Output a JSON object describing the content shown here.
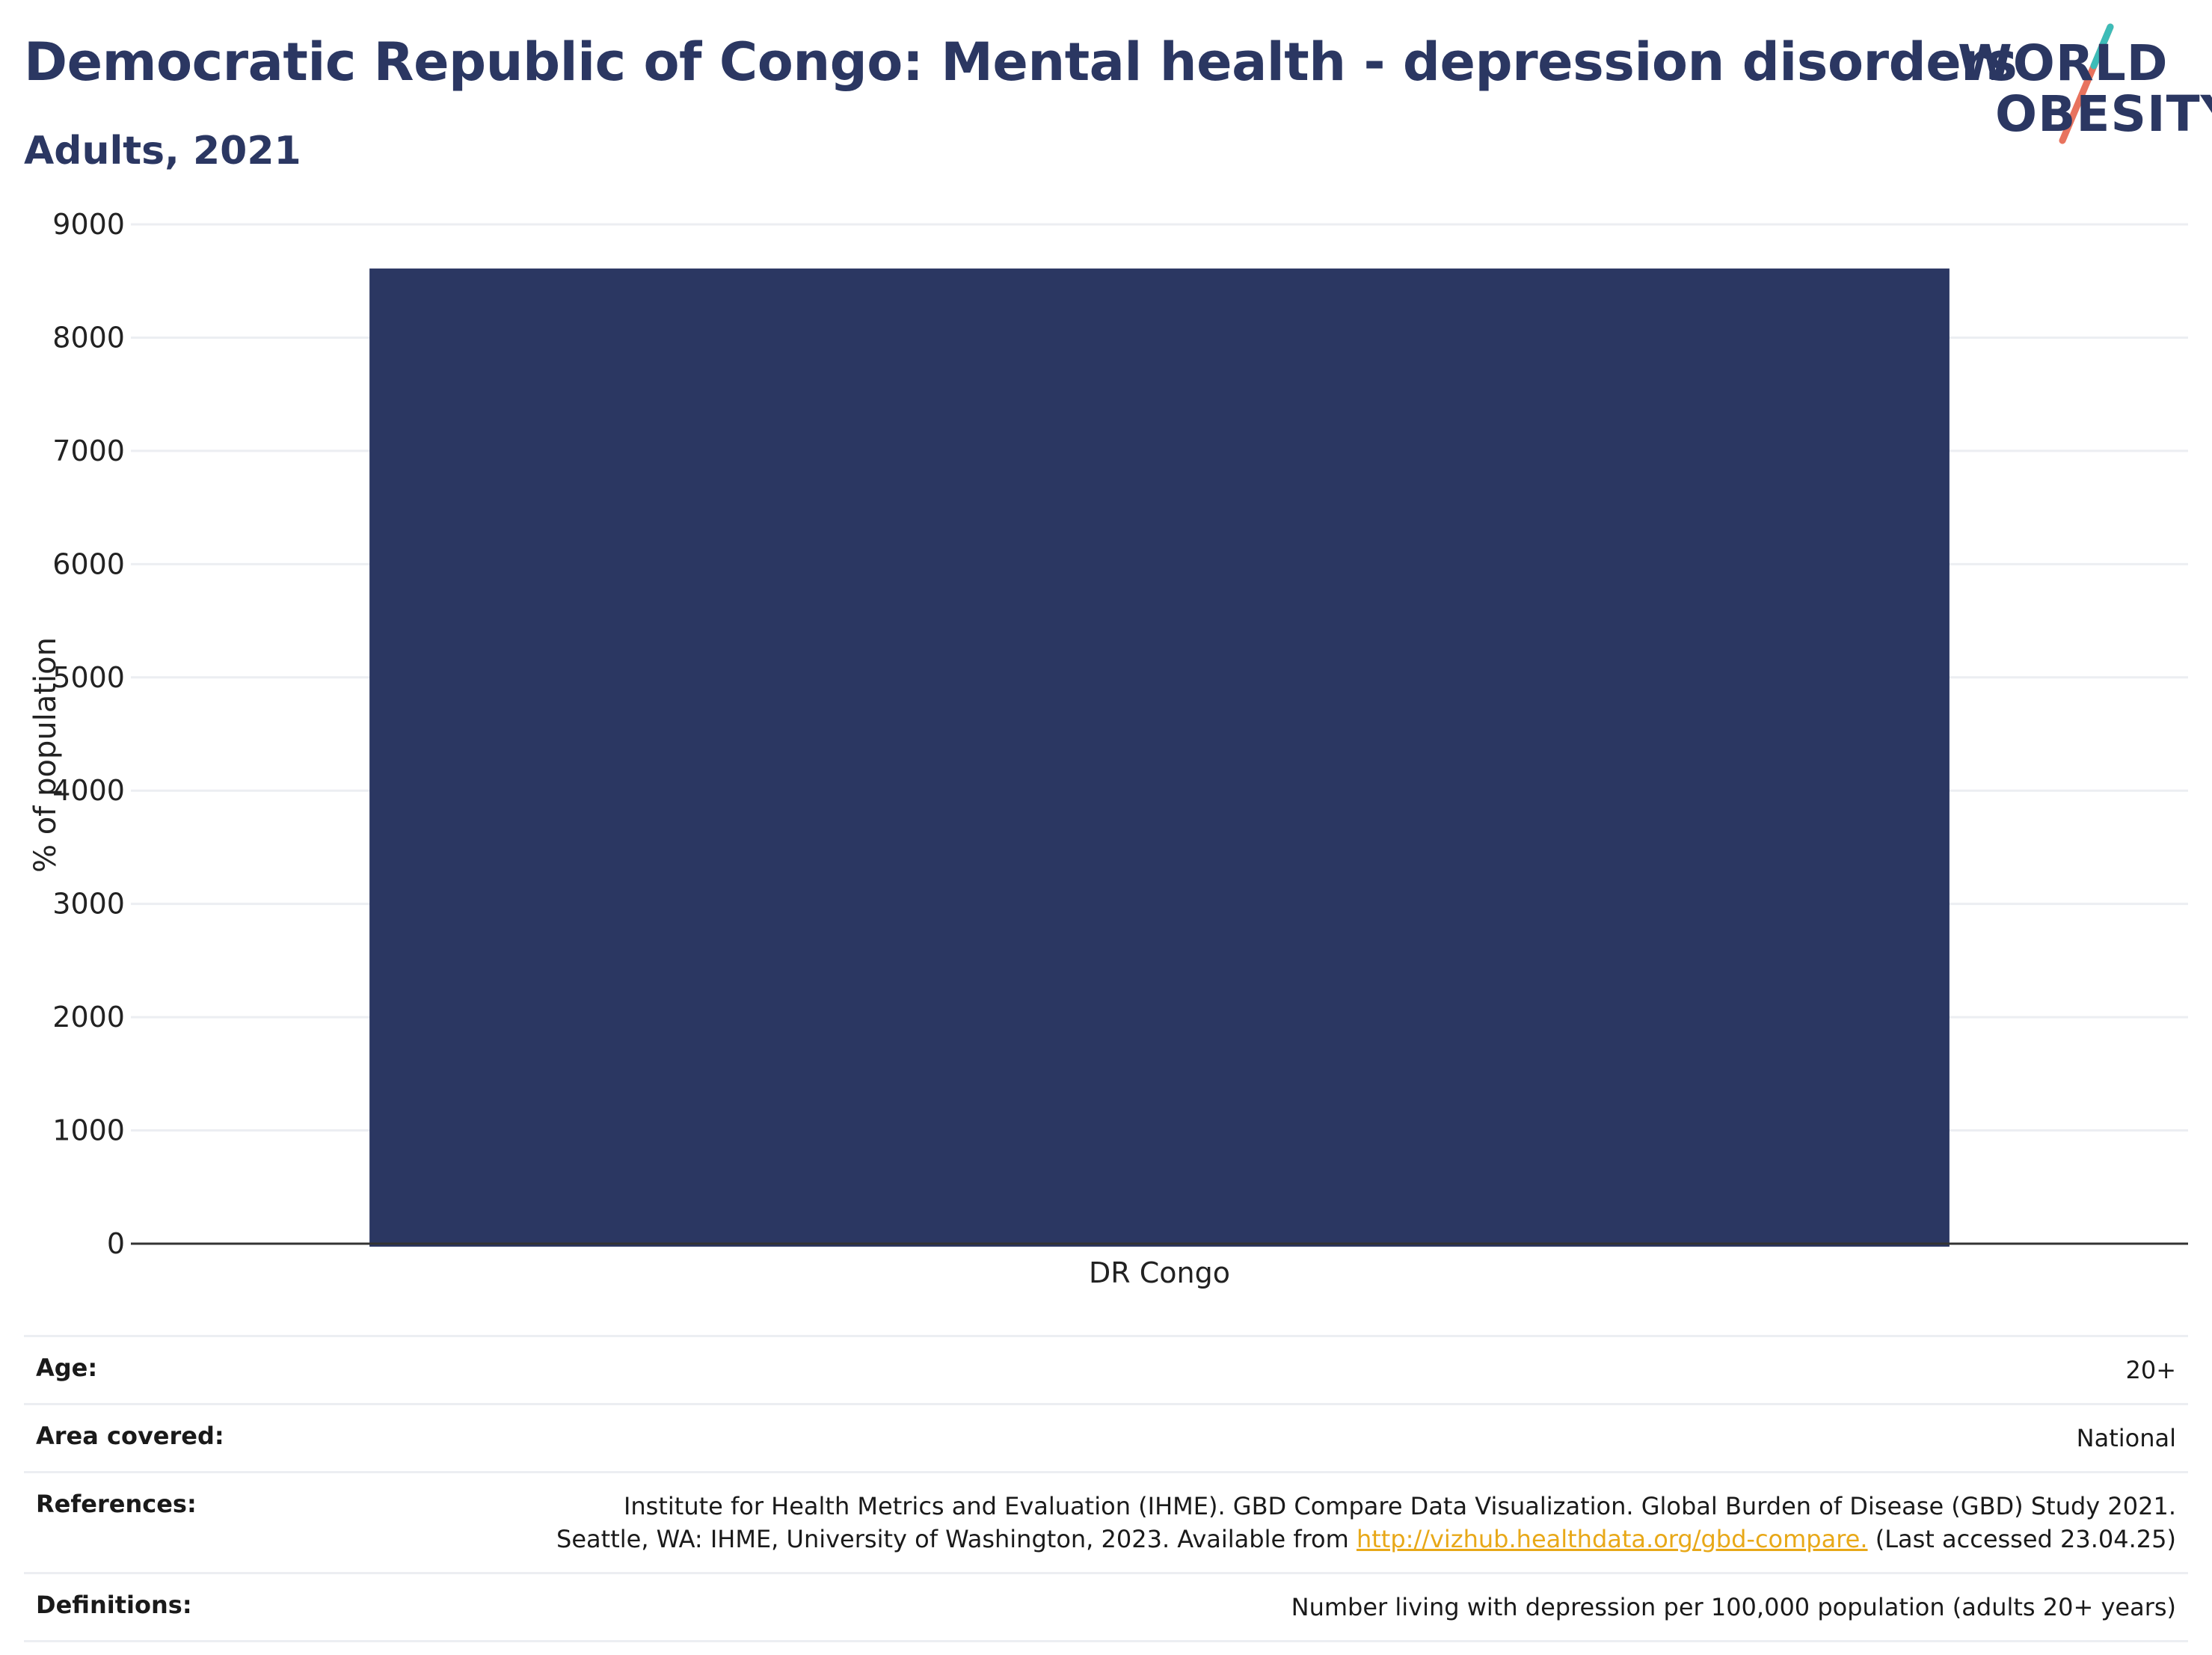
{
  "header": {
    "title": "Democratic Republic of Congo: Mental health - depression disorders",
    "subtitle": "Adults, 2021"
  },
  "logo": {
    "line1": "WORLD",
    "line2": "OBESITY",
    "colors": {
      "teal": "#3dbcb8",
      "coral": "#e8735e",
      "navy": "#2b3762"
    }
  },
  "chart_data": {
    "type": "bar",
    "categories": [
      "DR Congo"
    ],
    "values": [
      8610
    ],
    "ylabel": "% of population",
    "xlabel": "",
    "ylim": [
      0,
      9000
    ],
    "yticks": [
      0,
      1000,
      2000,
      3000,
      4000,
      5000,
      6000,
      7000,
      8000,
      9000
    ],
    "grid": true,
    "bar_color": "#2b3762"
  },
  "info": {
    "age": {
      "label": "Age:",
      "value": "20+"
    },
    "area": {
      "label": "Area covered:",
      "value": "National"
    },
    "references": {
      "label": "References:",
      "line1": "Institute for Health Metrics and Evaluation (IHME). GBD Compare Data Visualization. Global Burden of Disease (GBD) Study 2021.",
      "line2_pre": "Seattle, WA: IHME, University of Washington, 2023. Available from ",
      "link": "http://vizhub.healthdata.org/gbd-compare.",
      "line2_post": " (Last accessed 23.04.25)"
    },
    "definitions": {
      "label": "Definitions:",
      "value": "Number living with depression per 100,000 population (adults 20+ years)"
    }
  }
}
